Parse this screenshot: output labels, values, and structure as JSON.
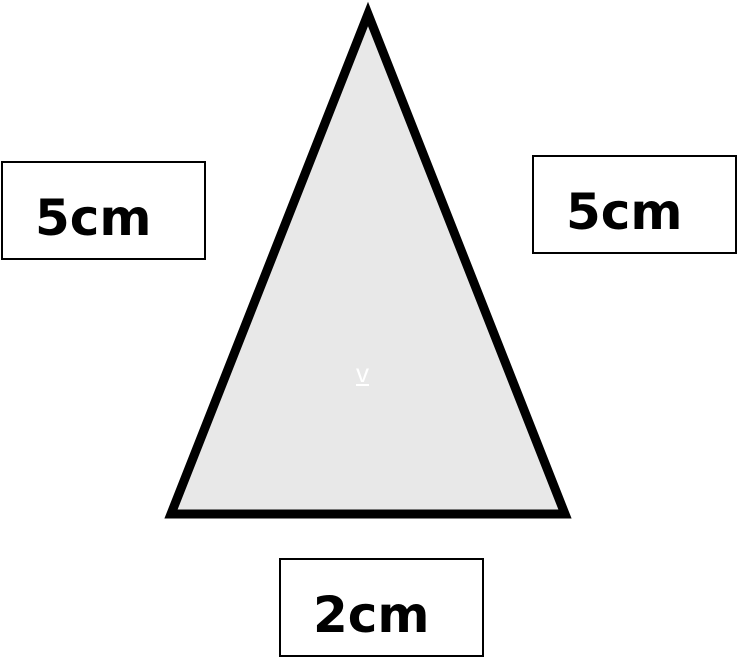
{
  "triangle": {
    "fill_color": "#e8e8e8",
    "stroke_color": "#000000",
    "center_label": "v"
  },
  "labels": {
    "left_side": "5cm",
    "right_side": "5cm",
    "base": "2cm"
  }
}
